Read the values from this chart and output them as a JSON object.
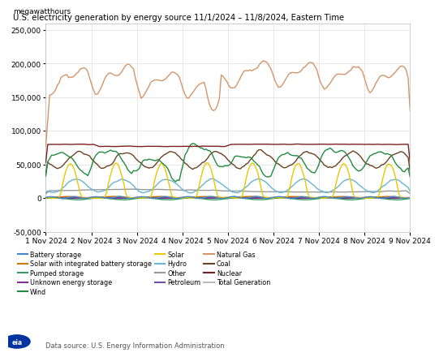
{
  "title": "U.S. electricity generation by energy source 11/1/2024 – 11/8/2024, Eastern Time",
  "ylabel": "megawatthours",
  "ylim": [
    -50000,
    260000
  ],
  "yticks": [
    -50000,
    0,
    50000,
    100000,
    150000,
    200000,
    250000
  ],
  "xlabel_dates": [
    "1 Nov 2024",
    "2 Nov 2024",
    "3 Nov 2024",
    "4 Nov 2024",
    "5 Nov 2024",
    "6 Nov 2024",
    "7 Nov 2024",
    "8 Nov 2024",
    "9 Nov 2024"
  ],
  "datasource": "Data source: U.S. Energy Information Administration",
  "series": {
    "Natural Gas": {
      "color": "#d4956a",
      "lw": 1.0
    },
    "Nuclear": {
      "color": "#7b2020",
      "lw": 1.0
    },
    "Coal": {
      "color": "#6b4226",
      "lw": 1.0
    },
    "Wind": {
      "color": "#228b40",
      "lw": 1.0
    },
    "Hydro": {
      "color": "#6ab4d4",
      "lw": 1.0
    },
    "Solar": {
      "color": "#e8c800",
      "lw": 1.0
    },
    "Other": {
      "color": "#999999",
      "lw": 1.0
    },
    "Battery storage": {
      "color": "#4488cc",
      "lw": 1.0
    },
    "Petroleum": {
      "color": "#7050a0",
      "lw": 1.0
    },
    "Unknown energy storage": {
      "color": "#7b3090",
      "lw": 1.0
    },
    "Solar with integrated battery storage": {
      "color": "#cc7700",
      "lw": 1.0
    },
    "Pumped storage": {
      "color": "#30a060",
      "lw": 1.0
    },
    "Total Generation": {
      "color": "#bbbbbb",
      "lw": 1.0
    }
  },
  "legend_cols": 3,
  "legend_entries": [
    {
      "label": "Battery storage",
      "color": "#4488cc"
    },
    {
      "label": "Solar with integrated battery storage",
      "color": "#cc7700"
    },
    {
      "label": "Pumped storage",
      "color": "#30a060"
    },
    {
      "label": "Unknown energy storage",
      "color": "#7b3090"
    },
    {
      "label": "Wind",
      "color": "#228b40"
    },
    {
      "label": "Solar",
      "color": "#e8c800"
    },
    {
      "label": "Hydro",
      "color": "#6ab4d4"
    },
    {
      "label": "Other",
      "color": "#999999"
    },
    {
      "label": "Petroleum",
      "color": "#7050a0"
    },
    {
      "label": "Natural Gas",
      "color": "#d4956a"
    },
    {
      "label": "Coal",
      "color": "#6b4226"
    },
    {
      "label": "Nuclear",
      "color": "#7b2020"
    },
    {
      "label": "Total Generation",
      "color": "#bbbbbb"
    }
  ]
}
